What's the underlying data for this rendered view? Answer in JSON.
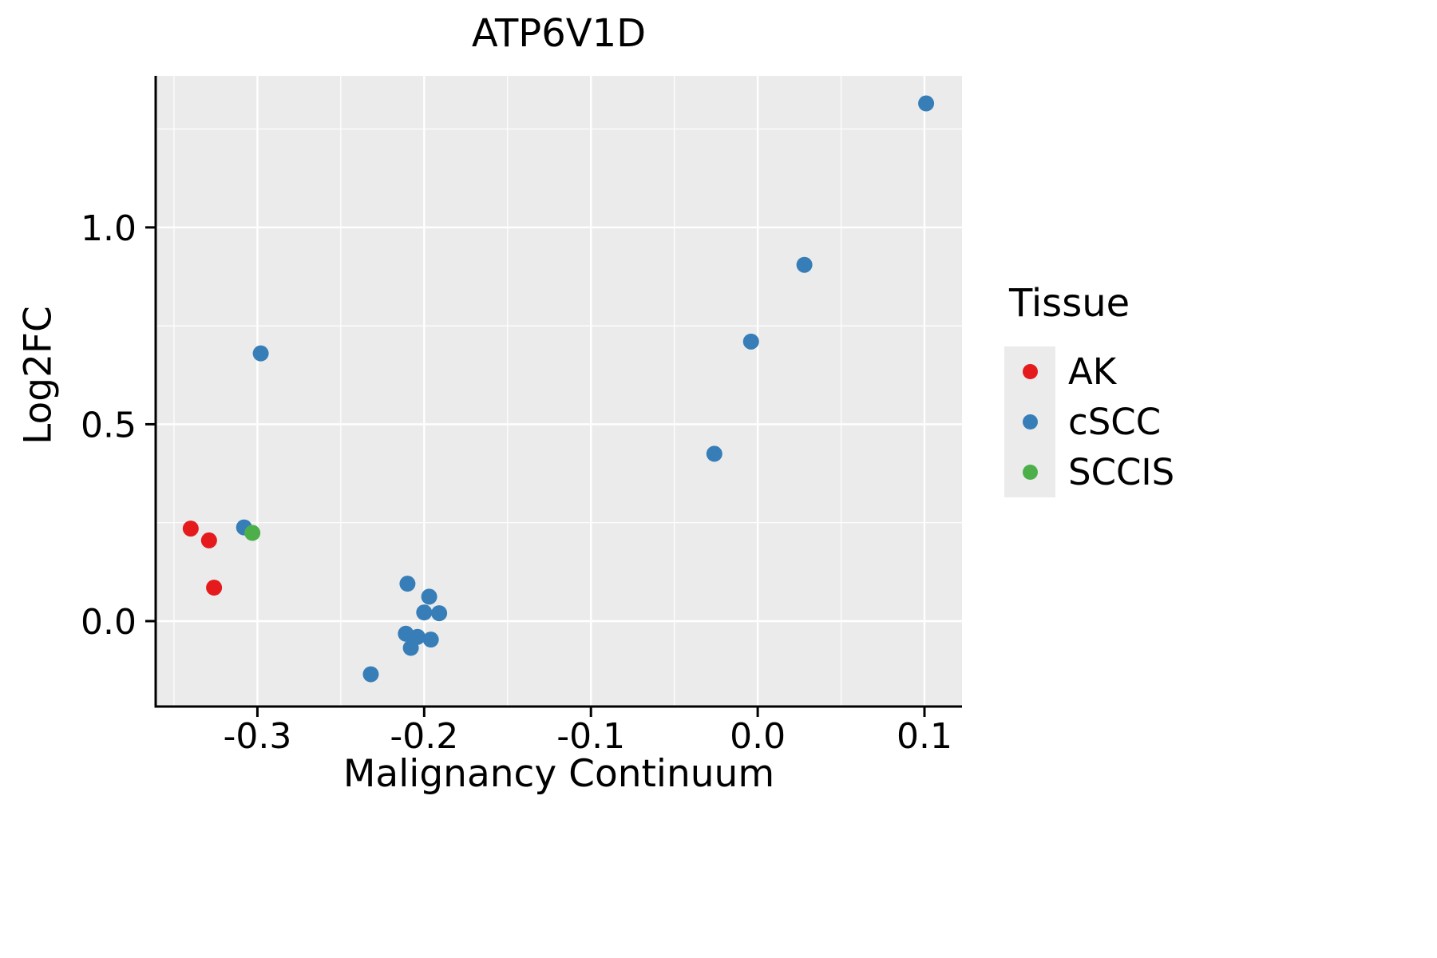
{
  "title": "ATP6V1D",
  "axes": {
    "x_label": "Malignancy Continuum",
    "y_label": "Log2FC"
  },
  "legend": {
    "title": "Tissue",
    "items": [
      {
        "label": "AK",
        "color": "#E41A1C"
      },
      {
        "label": "cSCC",
        "color": "#377EB8"
      },
      {
        "label": "SCCIS",
        "color": "#4DAF4A"
      }
    ]
  },
  "colors": {
    "panel_background": "#EBEBEB",
    "grid": "#FFFFFF",
    "axis": "#000000",
    "text": "#000000"
  },
  "chart_data": {
    "type": "scatter",
    "title": "ATP6V1D",
    "xlabel": "Malignancy Continuum",
    "ylabel": "Log2FC",
    "xlim": [
      -0.361,
      0.1225
    ],
    "ylim": [
      -0.217,
      1.385
    ],
    "grid": true,
    "legend_position": "right",
    "x_ticks": {
      "values": [
        -0.3,
        -0.2,
        -0.1,
        0.0,
        0.1
      ],
      "labels": [
        "-0.3",
        "-0.2",
        "-0.1",
        "0.0",
        "0.1"
      ]
    },
    "y_ticks": {
      "values": [
        0.0,
        0.5,
        1.0
      ],
      "labels": [
        "0.0",
        "0.5",
        "1.0"
      ]
    },
    "x_minor_ticks": [
      -0.35,
      -0.25,
      -0.15,
      -0.05,
      0.05
    ],
    "y_minor_ticks": [
      0.25,
      0.75,
      1.25
    ],
    "series": [
      {
        "name": "AK",
        "color": "#E41A1C",
        "points": [
          [
            -0.34,
            0.235
          ],
          [
            -0.329,
            0.205
          ],
          [
            -0.326,
            0.085
          ]
        ]
      },
      {
        "name": "cSCC",
        "color": "#377EB8",
        "points": [
          [
            -0.308,
            0.238
          ],
          [
            -0.298,
            0.68
          ],
          [
            -0.232,
            -0.135
          ],
          [
            -0.21,
            0.095
          ],
          [
            -0.197,
            0.062
          ],
          [
            -0.2,
            0.022
          ],
          [
            -0.191,
            0.02
          ],
          [
            -0.211,
            -0.032
          ],
          [
            -0.204,
            -0.04
          ],
          [
            -0.196,
            -0.047
          ],
          [
            -0.208,
            -0.068
          ],
          [
            -0.026,
            0.425
          ],
          [
            -0.004,
            0.71
          ],
          [
            0.028,
            0.905
          ],
          [
            0.101,
            1.315
          ]
        ]
      },
      {
        "name": "SCCIS",
        "color": "#4DAF4A",
        "points": [
          [
            -0.303,
            0.224
          ]
        ]
      }
    ]
  }
}
